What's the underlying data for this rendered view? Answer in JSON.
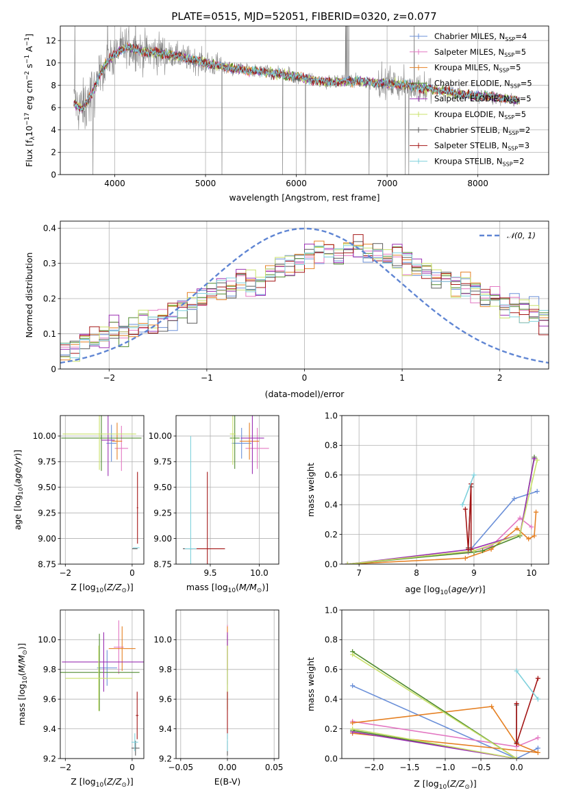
{
  "figure": {
    "title": "PLATE=0515, MJD=52051, FIBERID=0320, z=0.077"
  },
  "colors": {
    "models": [
      "#6a8fd8",
      "#e377c2",
      "#e58023",
      "#4f8a2e",
      "#9a2fb2",
      "#c8e06a",
      "#5a5a5a",
      "#a31515",
      "#7fd1dc"
    ],
    "data": "#808080",
    "gaussian": "#5f85d3"
  },
  "chart_data": [
    {
      "id": "spectrum",
      "type": "line",
      "title": "PLATE=0515, MJD=52051, FIBERID=0320, z=0.077",
      "xlabel": "wavelength [Angstrom, rest frame]",
      "ylabel": "Flux [f_λ10^-17 erg cm^-2 s^-1 A^-1]",
      "xlim": [
        3400,
        8780
      ],
      "ylim": [
        0,
        13.3
      ],
      "xticks": [
        4000,
        5000,
        6000,
        7000,
        8000
      ],
      "yticks": [
        0,
        2,
        4,
        6,
        8,
        10,
        12
      ],
      "legend_position": "upper-right",
      "legend": [
        {
          "label": "Chabrier MILES, N",
          "sub": "SSP",
          "value": "=4"
        },
        {
          "label": "Salpeter MILES, N",
          "sub": "SSP",
          "value": "=5"
        },
        {
          "label": "Kroupa MILES, N",
          "sub": "SSP",
          "value": "=5"
        },
        {
          "label": "Chabrier ELODIE, N",
          "sub": "SSP",
          "value": "=5"
        },
        {
          "label": "Salpeter ELODIE, N",
          "sub": "SSP",
          "value": "=5"
        },
        {
          "label": "Kroupa ELODIE, N",
          "sub": "SSP",
          "value": "=5"
        },
        {
          "label": "Chabrier STELIB, N",
          "sub": "SSP",
          "value": "=2"
        },
        {
          "label": "Salpeter STELIB, N",
          "sub": "SSP",
          "value": "=3"
        },
        {
          "label": "Kroupa STELIB, N",
          "sub": "SSP",
          "value": "=2"
        }
      ],
      "continuum": {
        "x": [
          3550,
          3650,
          3750,
          3850,
          3950,
          4050,
          4150,
          4300,
          4500,
          4700,
          4900,
          5100,
          5300,
          5500,
          5700,
          5900,
          6100,
          6300,
          6500,
          6700,
          6900,
          7100,
          7300,
          7500,
          7700,
          7900,
          8100,
          8300,
          8450
        ],
        "y": [
          6.3,
          5.9,
          7.2,
          9.3,
          10.4,
          11.1,
          11.4,
          11.0,
          10.9,
          10.6,
          10.2,
          9.8,
          9.5,
          9.3,
          9.1,
          8.9,
          8.6,
          8.3,
          8.3,
          8.4,
          8.2,
          8.1,
          7.9,
          7.6,
          7.4,
          7.1,
          7.0,
          6.8,
          6.6
        ]
      }
    },
    {
      "id": "residuals",
      "type": "histogram",
      "xlabel": "(data-model)/error",
      "ylabel": "Normed distribution",
      "xlim": [
        -2.5,
        2.5
      ],
      "ylim": [
        0,
        0.42
      ],
      "xticks": [
        -2,
        -1,
        0,
        1,
        2
      ],
      "yticks": [
        0.0,
        0.1,
        0.2,
        0.3,
        0.4
      ],
      "legend_position": "upper-right",
      "gaussian_label": "𝒩(0, 1)",
      "bin_edges_start": -2.5,
      "bin_width": 0.1,
      "reference_profile": [
        0.055,
        0.065,
        0.08,
        0.085,
        0.095,
        0.105,
        0.11,
        0.12,
        0.13,
        0.135,
        0.15,
        0.16,
        0.17,
        0.18,
        0.195,
        0.21,
        0.225,
        0.235,
        0.245,
        0.25,
        0.255,
        0.27,
        0.285,
        0.3,
        0.31,
        0.32,
        0.33,
        0.33,
        0.335,
        0.34,
        0.34,
        0.335,
        0.33,
        0.325,
        0.315,
        0.3,
        0.29,
        0.28,
        0.27,
        0.255,
        0.24,
        0.23,
        0.22,
        0.21,
        0.2,
        0.185,
        0.175,
        0.165,
        0.155,
        0.145,
        0.13,
        0.12,
        0.11,
        0.1,
        0.09,
        0.08,
        0.07,
        0.06,
        0.05,
        0.04
      ]
    },
    {
      "id": "age-vs-Z",
      "type": "errorbar",
      "xlabel": "Z [log10(Z/Z⊙)]",
      "ylabel": "age  [log10(age/yr)]",
      "xlim": [
        -2.15,
        0.35
      ],
      "ylim": [
        8.75,
        10.2
      ],
      "xticks": [
        -2,
        0
      ],
      "yticks": [
        8.75,
        9.0,
        9.25,
        9.5,
        9.75,
        10.0
      ],
      "points": [
        {
          "x": -0.62,
          "y": 9.93,
          "xerr": 0.15,
          "yerr": 0.18,
          "c": 0
        },
        {
          "x": -0.32,
          "y": 9.88,
          "xerr": 0.2,
          "yerr": 0.22,
          "c": 1
        },
        {
          "x": -0.45,
          "y": 9.95,
          "xerr": 0.15,
          "yerr": 0.18,
          "c": 2
        },
        {
          "x": -0.92,
          "y": 9.98,
          "xerr": 1.2,
          "yerr": 0.32,
          "c": 3
        },
        {
          "x": -0.72,
          "y": 9.96,
          "xerr": 0.2,
          "yerr": 0.35,
          "c": 4
        },
        {
          "x": -0.98,
          "y": 10.02,
          "xerr": 1.1,
          "yerr": 0.35,
          "c": 5
        },
        {
          "x": 0.08,
          "y": 8.9,
          "xerr": 0.08,
          "yerr": 0.0,
          "c": 6
        },
        {
          "x": 0.16,
          "y": 9.3,
          "xerr": 0.02,
          "yerr": 0.35,
          "c": 7
        },
        {
          "x": 0.12,
          "y": 8.91,
          "xerr": 0.1,
          "yerr": 0.0,
          "c": 8
        }
      ]
    },
    {
      "id": "age-vs-mass",
      "type": "errorbar",
      "xlabel": "mass [log10(M/M⊙)]",
      "ylabel": "",
      "xlim": [
        9.15,
        10.2
      ],
      "ylim": [
        8.75,
        10.2
      ],
      "xticks": [
        9.5,
        10.0
      ],
      "yticks": [
        8.75,
        9.0,
        9.25,
        9.5,
        9.75,
        10.0
      ],
      "points": [
        {
          "x": 9.82,
          "y": 9.93,
          "xerr": 0.1,
          "yerr": 0.15,
          "c": 0
        },
        {
          "x": 9.98,
          "y": 9.88,
          "xerr": 0.12,
          "yerr": 0.2,
          "c": 1
        },
        {
          "x": 9.9,
          "y": 9.95,
          "xerr": 0.1,
          "yerr": 0.18,
          "c": 2
        },
        {
          "x": 9.75,
          "y": 9.98,
          "xerr": 0.05,
          "yerr": 0.3,
          "c": 3
        },
        {
          "x": 9.93,
          "y": 9.98,
          "xerr": 0.12,
          "yerr": 0.35,
          "c": 4
        },
        {
          "x": 9.73,
          "y": 10.02,
          "xerr": 0.03,
          "yerr": 0.3,
          "c": 5
        },
        {
          "x": 9.27,
          "y": 8.9,
          "xerr": 0.05,
          "yerr": 0.0,
          "c": 6
        },
        {
          "x": 9.47,
          "y": 8.9,
          "xerr": 0.18,
          "yerr": 0.75,
          "c": 7
        },
        {
          "x": 9.3,
          "y": 8.9,
          "xerr": 0.06,
          "yerr": 1.1,
          "c": 8
        }
      ]
    },
    {
      "id": "weight-vs-age",
      "type": "line",
      "xlabel": "age  [log10(age/yr)]",
      "ylabel": "mass weight",
      "xlim": [
        6.7,
        10.3
      ],
      "ylim": [
        0,
        1.0
      ],
      "xticks": [
        7,
        8,
        9,
        10
      ],
      "yticks": [
        0.0,
        0.2,
        0.4,
        0.6,
        0.8,
        1.0
      ],
      "series": [
        {
          "c": 0,
          "x": [
            6.8,
            8.9,
            9.7,
            10.1
          ],
          "y": [
            0.0,
            0.08,
            0.44,
            0.49
          ]
        },
        {
          "c": 1,
          "x": [
            6.8,
            8.9,
            9.3,
            9.8,
            10.0
          ],
          "y": [
            0.0,
            0.08,
            0.12,
            0.31,
            0.25
          ]
        },
        {
          "c": 2,
          "x": [
            6.8,
            8.85,
            9.3,
            9.75,
            9.95,
            10.05,
            10.08
          ],
          "y": [
            0.0,
            0.04,
            0.1,
            0.24,
            0.17,
            0.19,
            0.35
          ]
        },
        {
          "c": 3,
          "x": [
            6.8,
            9.0,
            9.15,
            9.8,
            10.05
          ],
          "y": [
            0.0,
            0.08,
            0.09,
            0.19,
            0.72
          ]
        },
        {
          "c": 4,
          "x": [
            6.8,
            8.95,
            9.8,
            10.05
          ],
          "y": [
            0.0,
            0.1,
            0.2,
            0.71
          ]
        },
        {
          "c": 5,
          "x": [
            6.8,
            9.0,
            9.8,
            10.1
          ],
          "y": [
            0.0,
            0.09,
            0.2,
            0.7
          ]
        },
        {
          "c": 6,
          "x": [
            8.9,
            8.95
          ],
          "y": [
            0.11,
            0.52
          ]
        },
        {
          "c": 7,
          "x": [
            8.85,
            8.9,
            8.95,
            8.95
          ],
          "y": [
            0.37,
            0.1,
            0.54,
            0.1
          ]
        },
        {
          "c": 8,
          "x": [
            8.8,
            9.0
          ],
          "y": [
            0.4,
            0.6
          ]
        }
      ]
    },
    {
      "id": "mass-vs-Z",
      "type": "errorbar",
      "xlabel": "Z [log10(Z/Z⊙)]",
      "ylabel": "mass [log10(M/M⊙)]",
      "xlim": [
        -2.15,
        0.35
      ],
      "ylim": [
        9.2,
        10.2
      ],
      "xticks": [
        -2,
        0
      ],
      "yticks": [
        9.2,
        9.4,
        9.6,
        9.8,
        10.0
      ],
      "points": [
        {
          "x": -0.75,
          "y": 9.81,
          "xerr": 0.3,
          "yerr": 0.12,
          "c": 0
        },
        {
          "x": -0.4,
          "y": 9.95,
          "xerr": 0.15,
          "yerr": 0.18,
          "c": 1
        },
        {
          "x": -0.3,
          "y": 9.94,
          "xerr": 0.4,
          "yerr": 0.15,
          "c": 2
        },
        {
          "x": -0.98,
          "y": 9.78,
          "xerr": 1.2,
          "yerr": 0.26,
          "c": 3
        },
        {
          "x": -0.85,
          "y": 9.85,
          "xerr": 1.25,
          "yerr": 0.2,
          "c": 4
        },
        {
          "x": -1.0,
          "y": 9.74,
          "xerr": 1.0,
          "yerr": 0.22,
          "c": 5
        },
        {
          "x": 0.1,
          "y": 9.27,
          "xerr": 0.12,
          "yerr": 0.05,
          "c": 6
        },
        {
          "x": 0.15,
          "y": 9.49,
          "xerr": 0.04,
          "yerr": 0.16,
          "c": 7
        },
        {
          "x": 0.08,
          "y": 9.31,
          "xerr": 0.1,
          "yerr": 0.06,
          "c": 8
        }
      ]
    },
    {
      "id": "mass-vs-ebv",
      "type": "errorbar",
      "xlabel": "E(B-V)",
      "ylabel": "",
      "xlim": [
        -0.055,
        0.055
      ],
      "ylim": [
        9.2,
        10.2
      ],
      "xticks": [
        -0.05,
        0.0,
        0.05
      ],
      "yticks": [
        9.2,
        9.4,
        9.6,
        9.8,
        10.0
      ],
      "points": [
        {
          "x": 0.0,
          "y": 9.82,
          "xerr": 0.0,
          "yerr": 0.12,
          "c": 0
        },
        {
          "x": 0.0,
          "y": 9.95,
          "xerr": 0.0,
          "yerr": 0.15,
          "c": 1
        },
        {
          "x": 0.0,
          "y": 9.94,
          "xerr": 0.0,
          "yerr": 0.15,
          "c": 2
        },
        {
          "x": 0.0,
          "y": 9.78,
          "xerr": 0.0,
          "yerr": 0.25,
          "c": 3
        },
        {
          "x": 0.0,
          "y": 9.85,
          "xerr": 0.0,
          "yerr": 0.2,
          "c": 4
        },
        {
          "x": 0.0,
          "y": 9.74,
          "xerr": 0.0,
          "yerr": 0.22,
          "c": 5
        },
        {
          "x": 0.0,
          "y": 9.27,
          "xerr": 0.0,
          "yerr": 0.05,
          "c": 6
        },
        {
          "x": 0.0,
          "y": 9.49,
          "xerr": 0.0,
          "yerr": 0.16,
          "c": 7
        },
        {
          "x": 0.0,
          "y": 9.31,
          "xerr": 0.0,
          "yerr": 0.06,
          "c": 8
        }
      ]
    },
    {
      "id": "weight-vs-Z",
      "type": "line",
      "xlabel": "Z [log10(Z/Z⊙)]",
      "ylabel": "mass weight",
      "xlim": [
        -2.45,
        0.45
      ],
      "ylim": [
        0,
        1.0
      ],
      "xticks": [
        -2.0,
        -1.5,
        -1.0,
        -0.5,
        0.0
      ],
      "yticks": [
        0.0,
        0.2,
        0.4,
        0.6,
        0.8,
        1.0
      ],
      "series": [
        {
          "c": 0,
          "x": [
            -2.3,
            0.0,
            0.3
          ],
          "y": [
            0.49,
            0.0,
            0.07
          ]
        },
        {
          "c": 1,
          "x": [
            -2.3,
            0.0,
            0.3
          ],
          "y": [
            0.25,
            0.08,
            0.14
          ]
        },
        {
          "c": 2,
          "x": [
            -2.3,
            -0.35,
            0.0,
            0.3,
            -2.3
          ],
          "y": [
            0.24,
            0.35,
            0.1,
            0.04,
            0.17
          ]
        },
        {
          "c": 3,
          "x": [
            -2.3,
            0.0,
            -2.3
          ],
          "y": [
            0.19,
            0.0,
            0.72
          ]
        },
        {
          "c": 4,
          "x": [
            -2.3,
            0.0
          ],
          "y": [
            0.18,
            0.0
          ]
        },
        {
          "c": 5,
          "x": [
            -2.3,
            0.0,
            -2.3
          ],
          "y": [
            0.2,
            0.0,
            0.7
          ]
        },
        {
          "c": 6,
          "x": [
            0.0,
            0.0
          ],
          "y": [
            0.11,
            0.36
          ]
        },
        {
          "c": 7,
          "x": [
            0.0,
            0.0,
            0.0,
            0.3
          ],
          "y": [
            0.37,
            0.1,
            0.1,
            0.54
          ]
        },
        {
          "c": 8,
          "x": [
            0.0,
            0.3
          ],
          "y": [
            0.59,
            0.4
          ]
        }
      ]
    }
  ]
}
